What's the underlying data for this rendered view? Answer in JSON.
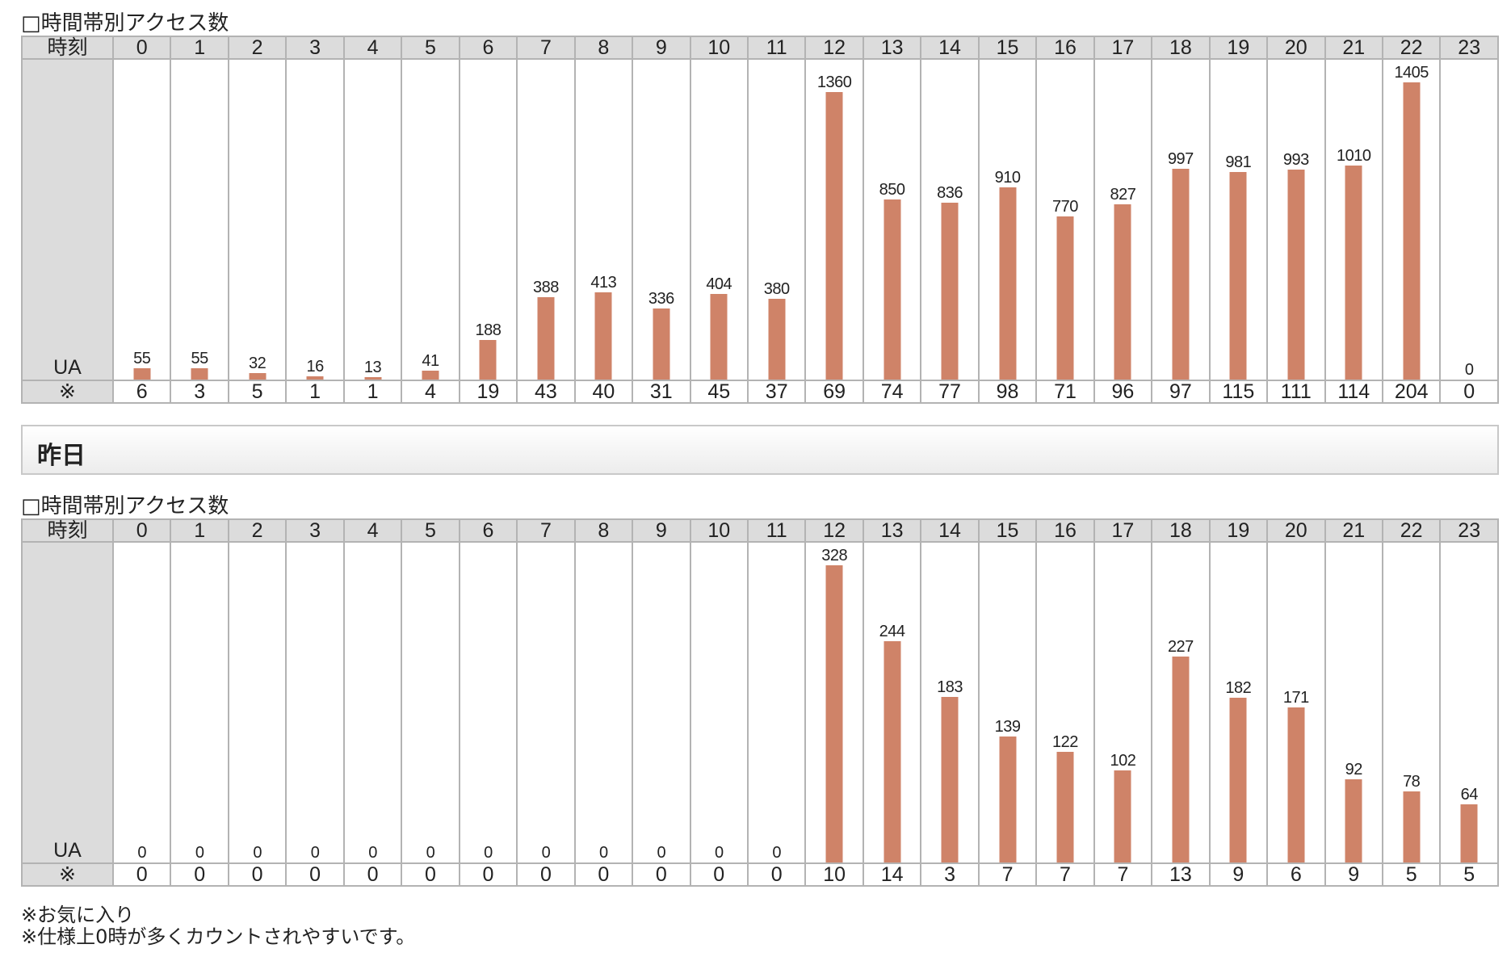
{
  "today": {
    "title": "□時間帯別アクセス数",
    "row_header_label": "時刻",
    "bar_row_label": "UA",
    "footnote_row_label": "※"
  },
  "yesterday": {
    "section_heading": "昨日",
    "title": "□時間帯別アクセス数",
    "row_header_label": "時刻",
    "bar_row_label": "UA",
    "footnote_row_label": "※"
  },
  "notes": {
    "line1": "※お気に入り",
    "line2": "※仕様上0時が多くカウントされやすいです。"
  },
  "colors": {
    "bar": "#cf8368",
    "header_bg": "#dcdcdc",
    "grid": "#b3b3b3"
  },
  "chart_data": [
    {
      "type": "bar",
      "categories": [
        "0",
        "1",
        "2",
        "3",
        "4",
        "5",
        "6",
        "7",
        "8",
        "9",
        "10",
        "11",
        "12",
        "13",
        "14",
        "15",
        "16",
        "17",
        "18",
        "19",
        "20",
        "21",
        "22",
        "23"
      ],
      "series": [
        {
          "name": "UA",
          "values": [
            55,
            55,
            32,
            16,
            13,
            41,
            188,
            388,
            413,
            336,
            404,
            380,
            1360,
            850,
            836,
            910,
            770,
            827,
            997,
            981,
            993,
            1010,
            1405,
            0
          ]
        }
      ],
      "footnote_values": [
        6,
        3,
        5,
        1,
        1,
        4,
        19,
        43,
        40,
        31,
        45,
        37,
        69,
        74,
        77,
        98,
        71,
        96,
        97,
        115,
        111,
        114,
        204,
        0
      ]
    },
    {
      "type": "bar",
      "categories": [
        "0",
        "1",
        "2",
        "3",
        "4",
        "5",
        "6",
        "7",
        "8",
        "9",
        "10",
        "11",
        "12",
        "13",
        "14",
        "15",
        "16",
        "17",
        "18",
        "19",
        "20",
        "21",
        "22",
        "23"
      ],
      "series": [
        {
          "name": "UA",
          "values": [
            0,
            0,
            0,
            0,
            0,
            0,
            0,
            0,
            0,
            0,
            0,
            0,
            328,
            244,
            183,
            139,
            122,
            102,
            227,
            182,
            171,
            92,
            78,
            64
          ]
        }
      ],
      "footnote_values": [
        0,
        0,
        0,
        0,
        0,
        0,
        0,
        0,
        0,
        0,
        0,
        0,
        10,
        14,
        3,
        7,
        7,
        7,
        13,
        9,
        6,
        9,
        5,
        5
      ]
    }
  ]
}
